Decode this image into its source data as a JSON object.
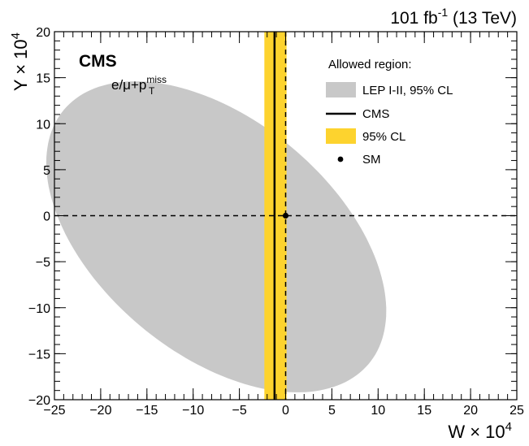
{
  "chart_data": {
    "type": "scatter",
    "lumi_label": "101 fb",
    "lumi_sup": "-1",
    "energy_label": " (13 TeV)",
    "experiment_label": "CMS",
    "channel_label": "e/μ+p",
    "channel_sup": "miss",
    "channel_sub": "T",
    "xlabel": "W × 10",
    "xlabel_sup": "4",
    "ylabel": "Y × 10",
    "ylabel_sup": "4",
    "xlim": [
      -25,
      25
    ],
    "ylim": [
      -20,
      20
    ],
    "xticks": [
      -25,
      -20,
      -15,
      -10,
      -5,
      0,
      5,
      10,
      15,
      20,
      25
    ],
    "yticks": [
      -20,
      -15,
      -10,
      -5,
      0,
      5,
      10,
      15,
      20
    ],
    "xtick_labels": [
      "−25",
      "−20",
      "−15",
      "−10",
      "−5",
      "0",
      "5",
      "10",
      "15",
      "20",
      "25"
    ],
    "ytick_labels": [
      "−20",
      "−15",
      "−10",
      "−5",
      "0",
      "5",
      "10",
      "15",
      "20"
    ],
    "lep_ellipse": {
      "center": [
        -7.5,
        -2.3
      ],
      "semi_major": 21.5,
      "semi_minor": 12.7,
      "angle_deg": -40
    },
    "cms_line_w": -1.2,
    "cl_band_w": [
      -2.3,
      0.1
    ],
    "sm_point": [
      0,
      0
    ],
    "reference_lines": {
      "w0": 0,
      "y0": 0
    },
    "legend_title": "Allowed region:",
    "legend": [
      {
        "label": "LEP I-II, 95% CL",
        "kind": "box"
      },
      {
        "label": "CMS",
        "kind": "line"
      },
      {
        "label": "95% CL",
        "kind": "band"
      },
      {
        "label": "SM",
        "kind": "marker"
      }
    ],
    "colors": {
      "lep": "#c8c8c8",
      "band": "#fdd32e",
      "line": "#000000"
    },
    "legend_position": "top-right",
    "grid": false
  }
}
